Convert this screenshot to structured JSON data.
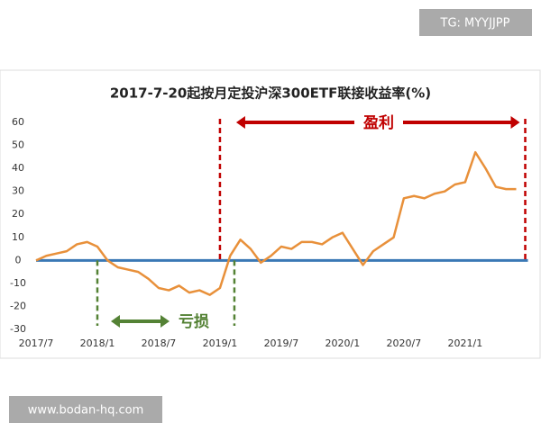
{
  "chart_data": {
    "type": "line",
    "title": "2017-7-20起按月定投沪深300ETF联接收益率(%)",
    "categories": [
      "2017/7",
      null,
      null,
      null,
      null,
      null,
      "2018/1",
      null,
      null,
      null,
      null,
      null,
      "2018/7",
      null,
      null,
      null,
      null,
      null,
      "2019/1",
      null,
      null,
      null,
      null,
      null,
      "2019/7",
      null,
      null,
      null,
      null,
      null,
      "2020/1",
      null,
      null,
      null,
      null,
      null,
      "2020/7",
      null,
      null,
      null,
      null,
      null,
      "2021/1",
      null,
      null,
      null,
      null,
      null
    ],
    "series": [
      {
        "color": "#e8903a",
        "values": [
          0,
          2,
          3,
          4,
          7,
          8,
          6,
          0,
          -3,
          -4,
          -5,
          -8,
          -12,
          -13,
          -11,
          -14,
          -13,
          -15,
          -12,
          2,
          9,
          5,
          -1,
          2,
          6,
          5,
          8,
          8,
          7,
          10,
          12,
          5,
          -2,
          4,
          7,
          10,
          27,
          28,
          27,
          29,
          30,
          33,
          34,
          47,
          40,
          32,
          31,
          31
        ]
      }
    ],
    "ylim": [
      -30,
      60
    ],
    "yticks": [
      -30,
      -20,
      -10,
      0,
      10,
      20,
      30,
      40,
      50,
      60
    ],
    "zero_line_color": "#3a78b5",
    "annotations": [
      {
        "text": "盈利",
        "color": "#c00000"
      },
      {
        "text": "亏损",
        "color": "#548235"
      }
    ]
  },
  "watermarks": [
    "TG: MYYJJPP",
    "www.bodan-hq.com"
  ]
}
